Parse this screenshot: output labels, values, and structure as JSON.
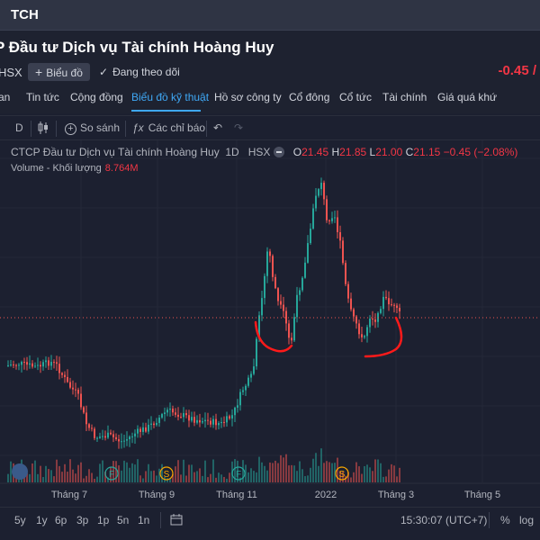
{
  "topbar": {
    "ticker": "TCH"
  },
  "header": {
    "company_name": "P Đầu tư Dịch vụ Tài chính Hoàng Huy",
    "exchange": "HSX",
    "chart_button": "Biểu đồ",
    "follow_label": "Đang theo dõi",
    "change": "-0.45 /"
  },
  "tabs": [
    {
      "label": "an",
      "active": false
    },
    {
      "label": "Tin tức",
      "active": false
    },
    {
      "label": "Cộng đồng",
      "active": false
    },
    {
      "label": "Biểu đồ kỹ thuật",
      "active": true
    },
    {
      "label": "Hồ sơ công ty",
      "active": false
    },
    {
      "label": "Cổ đông",
      "active": false
    },
    {
      "label": "Cổ tức",
      "active": false
    },
    {
      "label": "Tài chính",
      "active": false
    },
    {
      "label": "Giá quá khứ",
      "active": false
    }
  ],
  "toolbar": {
    "interval": "D",
    "compare_label": "So sánh",
    "indicators_label": "Các chỉ báo"
  },
  "legend": {
    "name": "CTCP Đầu tư Dịch vụ Tài chính Hoàng Huy",
    "interval": "1D",
    "exchange": "HSX",
    "o_label": "O",
    "o_value": "21.45",
    "h_label": "H",
    "h_value": "21.85",
    "l_label": "L",
    "l_value": "21.00",
    "c_label": "C",
    "c_value": "21.15",
    "change": "−0.45 (−2.08%)",
    "volume_label": "Volume - Khối lượng",
    "volume_value": "8.764M"
  },
  "chart_data": {
    "type": "candlestick",
    "x_tick_labels": [
      "Tháng 7",
      "Tháng 9",
      "Tháng 11",
      "2022",
      "Tháng 3",
      "Tháng 5"
    ],
    "event_markers": [
      "F",
      "S",
      "F",
      "S"
    ],
    "last_close_line": true
  },
  "bottombar": {
    "ranges": [
      "5y",
      "1y",
      "6p",
      "3p",
      "1p",
      "5n",
      "1n"
    ],
    "time": "15:30:07 (UTC+7)",
    "percent_label": "%",
    "log_label": "log"
  },
  "colors": {
    "up": "#26a69a",
    "down": "#ef5350",
    "accent": "#3fa8f5",
    "annotation": "#ff1a1a"
  }
}
